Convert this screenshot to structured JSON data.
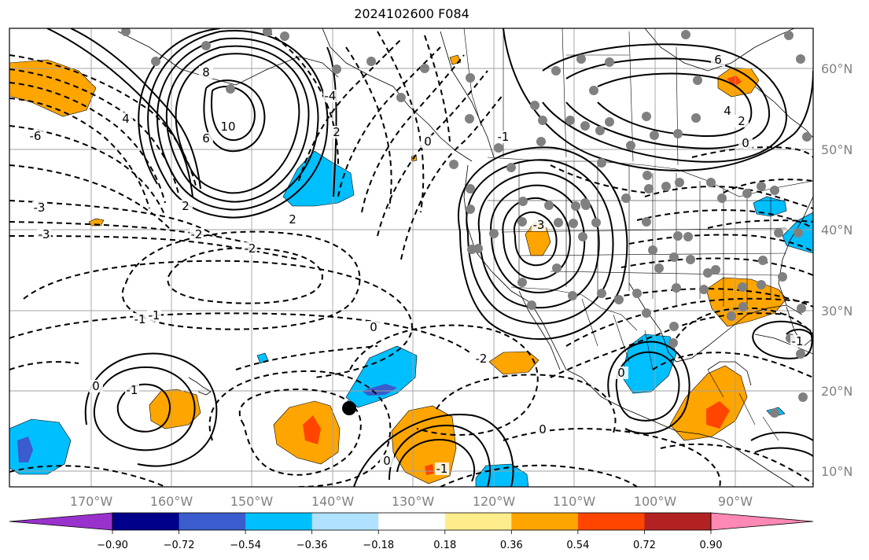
{
  "title": "2024102600 F084",
  "map": {
    "lon_labels": [
      "170°W",
      "160°W",
      "150°W",
      "140°W",
      "130°W",
      "120°W",
      "110°W",
      "100°W",
      "90°W"
    ],
    "lat_labels": [
      "60°N",
      "50°N",
      "40°N",
      "30°N",
      "20°N",
      "10°N"
    ],
    "contour_labels": [
      "8",
      "10",
      "6",
      "4",
      "2",
      "0",
      "-1",
      "-2",
      "-3",
      "-4",
      "-6",
      "2",
      "6",
      "4",
      "2",
      "0",
      "-1",
      "-2",
      "-3",
      "-3",
      "0",
      "-1",
      "-2",
      "0",
      "0",
      "-1",
      "0",
      "2",
      "-1",
      "-1",
      "0"
    ],
    "colors": {
      "purple": "#9932cc",
      "navy": "#00008b",
      "royal_blue": "#3a5ccc",
      "deep_sky_blue": "#00bfff",
      "light_blue": "#b0e2ff",
      "white": "#ffffff",
      "light_yellow": "#ffec8b",
      "orange": "#ffa500",
      "orange_red": "#ff4500",
      "firebrick": "#b22222",
      "pink": "#ff88b4",
      "grid": "#a0a0a0",
      "dot": "#808080"
    }
  },
  "colorbar": {
    "tick_labels": [
      "−0.90",
      "−0.72",
      "−0.54",
      "−0.36",
      "−0.18",
      "0.18",
      "0.36",
      "0.54",
      "0.72",
      "0.90"
    ]
  }
}
